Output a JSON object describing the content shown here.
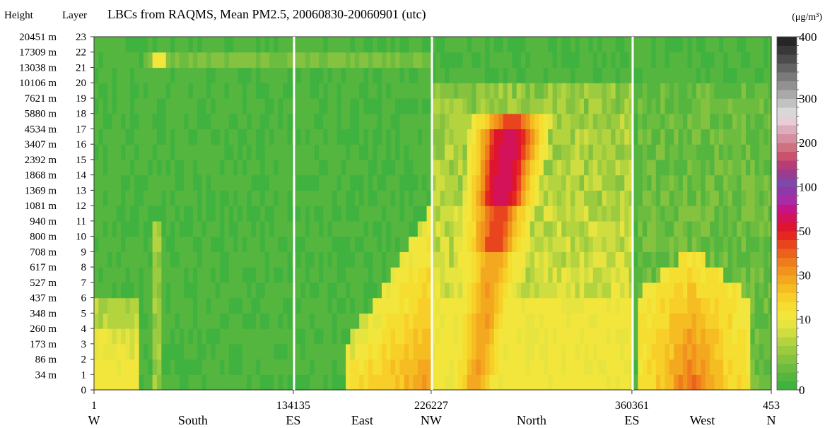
{
  "chart_data": {
    "type": "heatmap",
    "title": "LBCs from RAQMS, Mean PM2.5, 20060830-20060901 (utc)",
    "height_header": "Height",
    "layer_header": "Layer",
    "unit_label": "(μg/m³)",
    "x_range": [
      1,
      453
    ],
    "x_ticks": [
      {
        "value": 1,
        "label": "1"
      },
      {
        "value": 134,
        "label": "134135"
      },
      {
        "value": 226,
        "label": "226227"
      },
      {
        "value": 360,
        "label": "360361"
      },
      {
        "value": 453,
        "label": "453"
      }
    ],
    "boundaries": [
      134.5,
      226.5,
      360.5
    ],
    "side_labels": [
      {
        "x": 1,
        "label": "W"
      },
      {
        "x": 67,
        "label": "South"
      },
      {
        "x": 134,
        "label": "ES"
      },
      {
        "x": 180,
        "label": "East"
      },
      {
        "x": 226,
        "label": "NW"
      },
      {
        "x": 293,
        "label": "North"
      },
      {
        "x": 360,
        "label": "ES"
      },
      {
        "x": 407,
        "label": "West"
      },
      {
        "x": 453,
        "label": "N"
      }
    ],
    "layers": [
      {
        "layer": 0,
        "height": ""
      },
      {
        "layer": 1,
        "height": "34 m"
      },
      {
        "layer": 2,
        "height": "86 m"
      },
      {
        "layer": 3,
        "height": "173 m"
      },
      {
        "layer": 4,
        "height": "260 m"
      },
      {
        "layer": 5,
        "height": "348 m"
      },
      {
        "layer": 6,
        "height": "437 m"
      },
      {
        "layer": 7,
        "height": "527 m"
      },
      {
        "layer": 8,
        "height": "617 m"
      },
      {
        "layer": 9,
        "height": "708 m"
      },
      {
        "layer": 10,
        "height": "800 m"
      },
      {
        "layer": 11,
        "height": "940 m"
      },
      {
        "layer": 12,
        "height": "1081 m"
      },
      {
        "layer": 13,
        "height": "1369 m"
      },
      {
        "layer": 14,
        "height": "1868 m"
      },
      {
        "layer": 15,
        "height": "2392 m"
      },
      {
        "layer": 16,
        "height": "3407 m"
      },
      {
        "layer": 17,
        "height": "4534 m"
      },
      {
        "layer": 18,
        "height": "5880 m"
      },
      {
        "layer": 19,
        "height": "7621 m"
      },
      {
        "layer": 20,
        "height": "10106 m"
      },
      {
        "layer": 21,
        "height": "13038 m"
      },
      {
        "layer": 22,
        "height": "17309 m"
      },
      {
        "layer": 23,
        "height": "20451 m"
      }
    ],
    "colorbar": {
      "labels": [
        {
          "value": 0,
          "label": "0"
        },
        {
          "value": 10,
          "label": "10"
        },
        {
          "value": 30,
          "label": "30"
        },
        {
          "value": 50,
          "label": "50"
        },
        {
          "value": 100,
          "label": "100"
        },
        {
          "value": 200,
          "label": "200"
        },
        {
          "value": 300,
          "label": "300"
        },
        {
          "value": 400,
          "label": "400"
        }
      ],
      "colors": [
        "#3fb23f",
        "#55b63f",
        "#6cbc3f",
        "#84c23f",
        "#9ccb3f",
        "#b4d43f",
        "#cfdd40",
        "#e8e43f",
        "#f2e63c",
        "#f6de30",
        "#f7cf28",
        "#f5bd22",
        "#f3a81f",
        "#f1931d",
        "#ef7c1c",
        "#ec611c",
        "#e8451e",
        "#e4281f",
        "#df1530",
        "#d3125a",
        "#c51485",
        "#a92ba5",
        "#8f39a9",
        "#7f48aa",
        "#9a3d8f",
        "#b73d78",
        "#c9526e",
        "#d07182",
        "#d68fa0",
        "#dcadbd",
        "#e6cdd8",
        "#d8d8d8",
        "#c2c2c2",
        "#a9a9a9",
        "#919191",
        "#7a7a7a",
        "#636363",
        "#4c4c4c",
        "#383838",
        "#262626"
      ]
    },
    "plumes": [
      {
        "name": "south_corner",
        "x_min": 1,
        "x_max": 30,
        "top_layer": 6,
        "max_value": 12
      },
      {
        "name": "east_boundary",
        "x_min": 165,
        "x_max": 226,
        "top_layer": 12,
        "max_value": 35
      },
      {
        "name": "north_main_plume",
        "x_min": 227,
        "x_max": 300,
        "top_layer": 18,
        "max_value": 60
      },
      {
        "name": "west_boundary",
        "x_min": 361,
        "x_max": 453,
        "top_layer": 9,
        "max_value": 40
      }
    ],
    "grid": false
  }
}
